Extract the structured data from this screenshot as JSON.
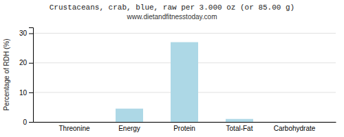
{
  "chart_data": {
    "type": "bar",
    "title": "Crustaceans, crab, blue, raw per 3.000 oz (or 85.00 g)",
    "subtitle": "www.dietandfitnesstoday.com",
    "ylabel": "Percentage of RDH (%)",
    "categories": [
      "Threonine",
      "Energy",
      "Protein",
      "Total-Fat",
      "Carbohydrate"
    ],
    "values": [
      0,
      4.5,
      27,
      1,
      0
    ],
    "color": "#add8e6",
    "ylim": [
      0,
      32
    ],
    "yticks": [
      0,
      10,
      20,
      30
    ],
    "grid": true
  }
}
